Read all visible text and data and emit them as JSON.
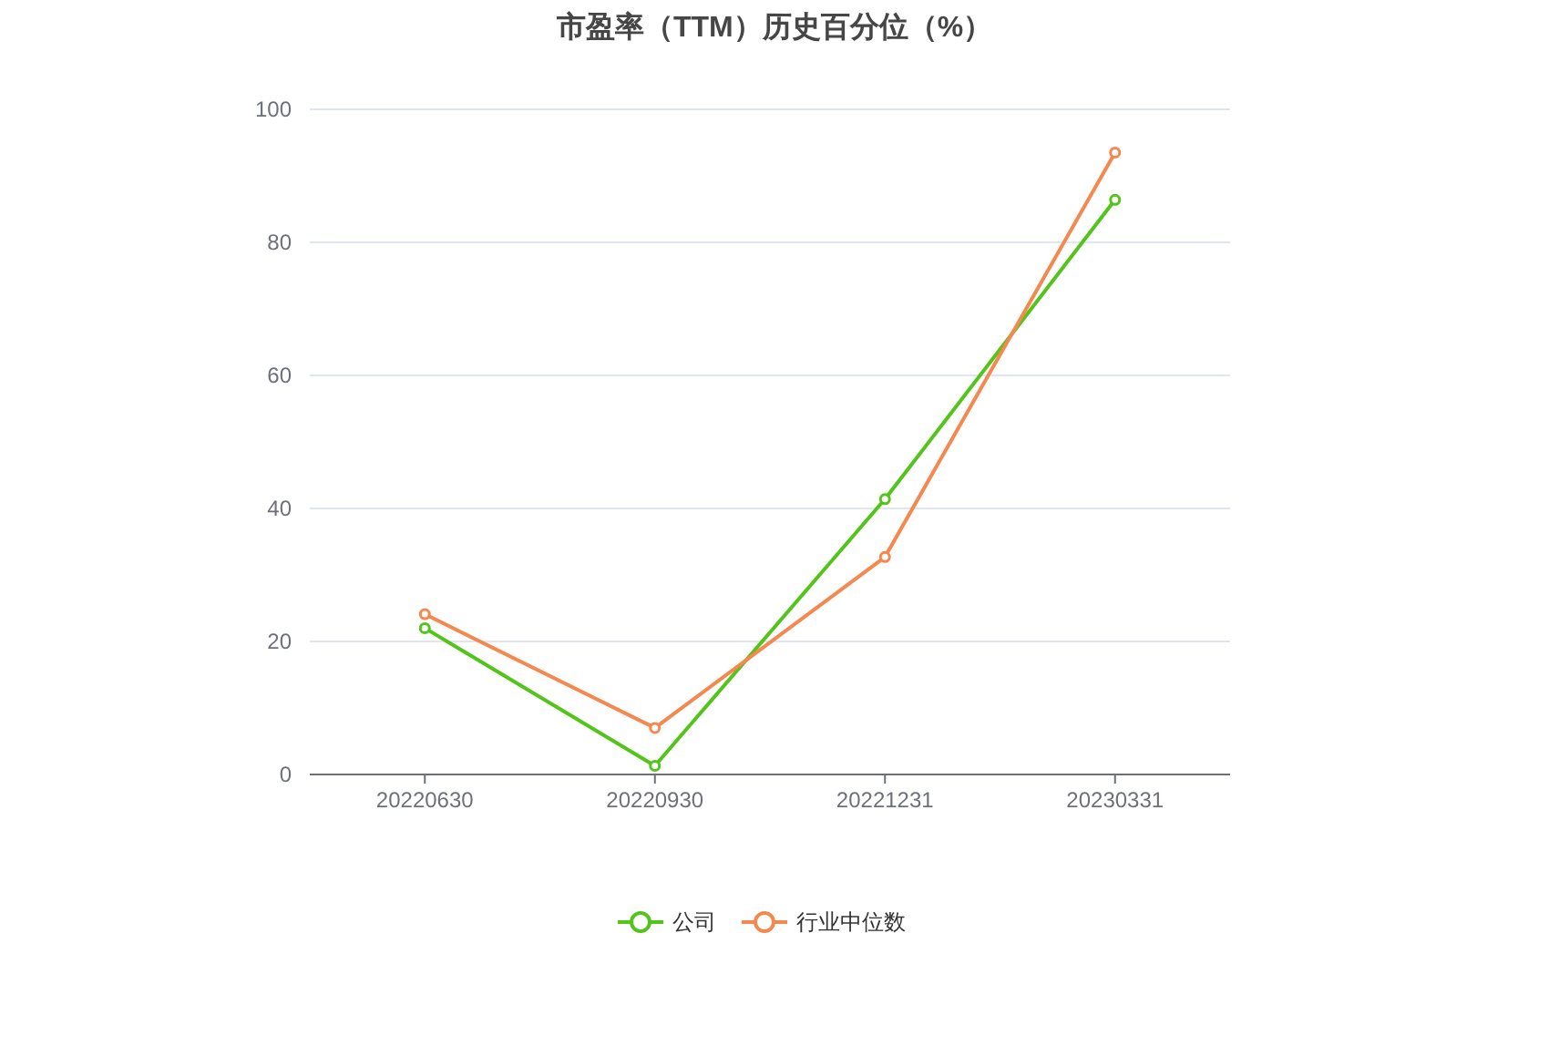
{
  "chart_data": {
    "type": "line",
    "title": "市盈率（TTM）历史百分位（%）",
    "categories": [
      "20220630",
      "20220930",
      "20221231",
      "20230331"
    ],
    "series": [
      {
        "name": "公司",
        "color": "#52c41a",
        "values": [
          22.0,
          1.3,
          41.4,
          86.4
        ]
      },
      {
        "name": "行业中位数",
        "color": "#f5884f",
        "values": [
          24.1,
          7.0,
          32.7,
          93.5
        ]
      }
    ],
    "ylim": [
      0,
      100
    ],
    "yticks": [
      0,
      20,
      40,
      60,
      80,
      100
    ],
    "grid": "y",
    "legend": "bottom",
    "marker": "circle",
    "line_style": "solid"
  }
}
